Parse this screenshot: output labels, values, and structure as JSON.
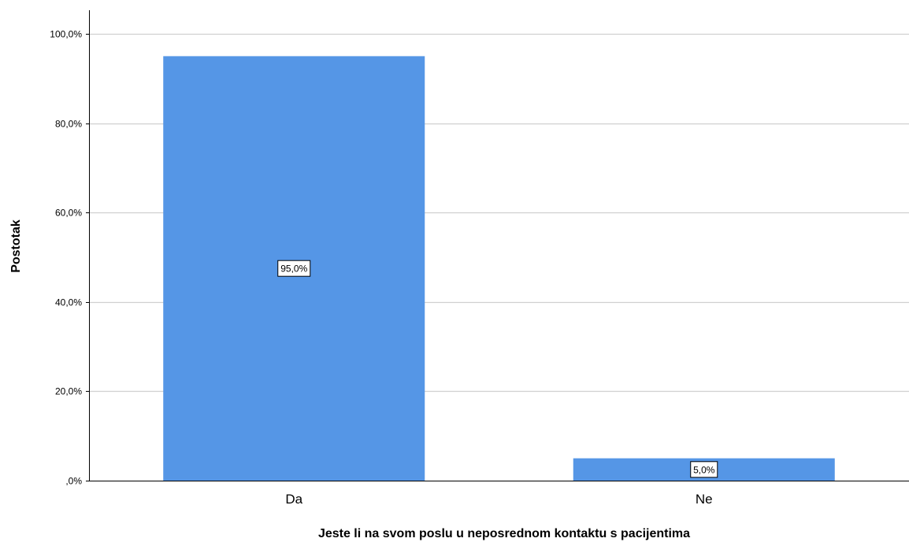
{
  "chart_data": {
    "type": "bar",
    "categories": [
      "Da",
      "Ne"
    ],
    "values": [
      95.0,
      5.0
    ],
    "data_labels": [
      "95,0%",
      "5,0%"
    ],
    "xlabel": "Jeste li na svom poslu u neposrednom kontaktu s pacijentima",
    "ylabel": "Postotak",
    "ylim": [
      0,
      100
    ],
    "yticks": [
      0,
      20,
      40,
      60,
      80,
      100
    ],
    "ytick_labels": [
      ",0%",
      "20,0%",
      "40,0%",
      "60,0%",
      "80,0%",
      "100,0%"
    ],
    "grid": true,
    "legend": "none",
    "colors": {
      "bar": "#5596e6",
      "grid": "#d0d0d0",
      "axis": "#000000"
    }
  }
}
